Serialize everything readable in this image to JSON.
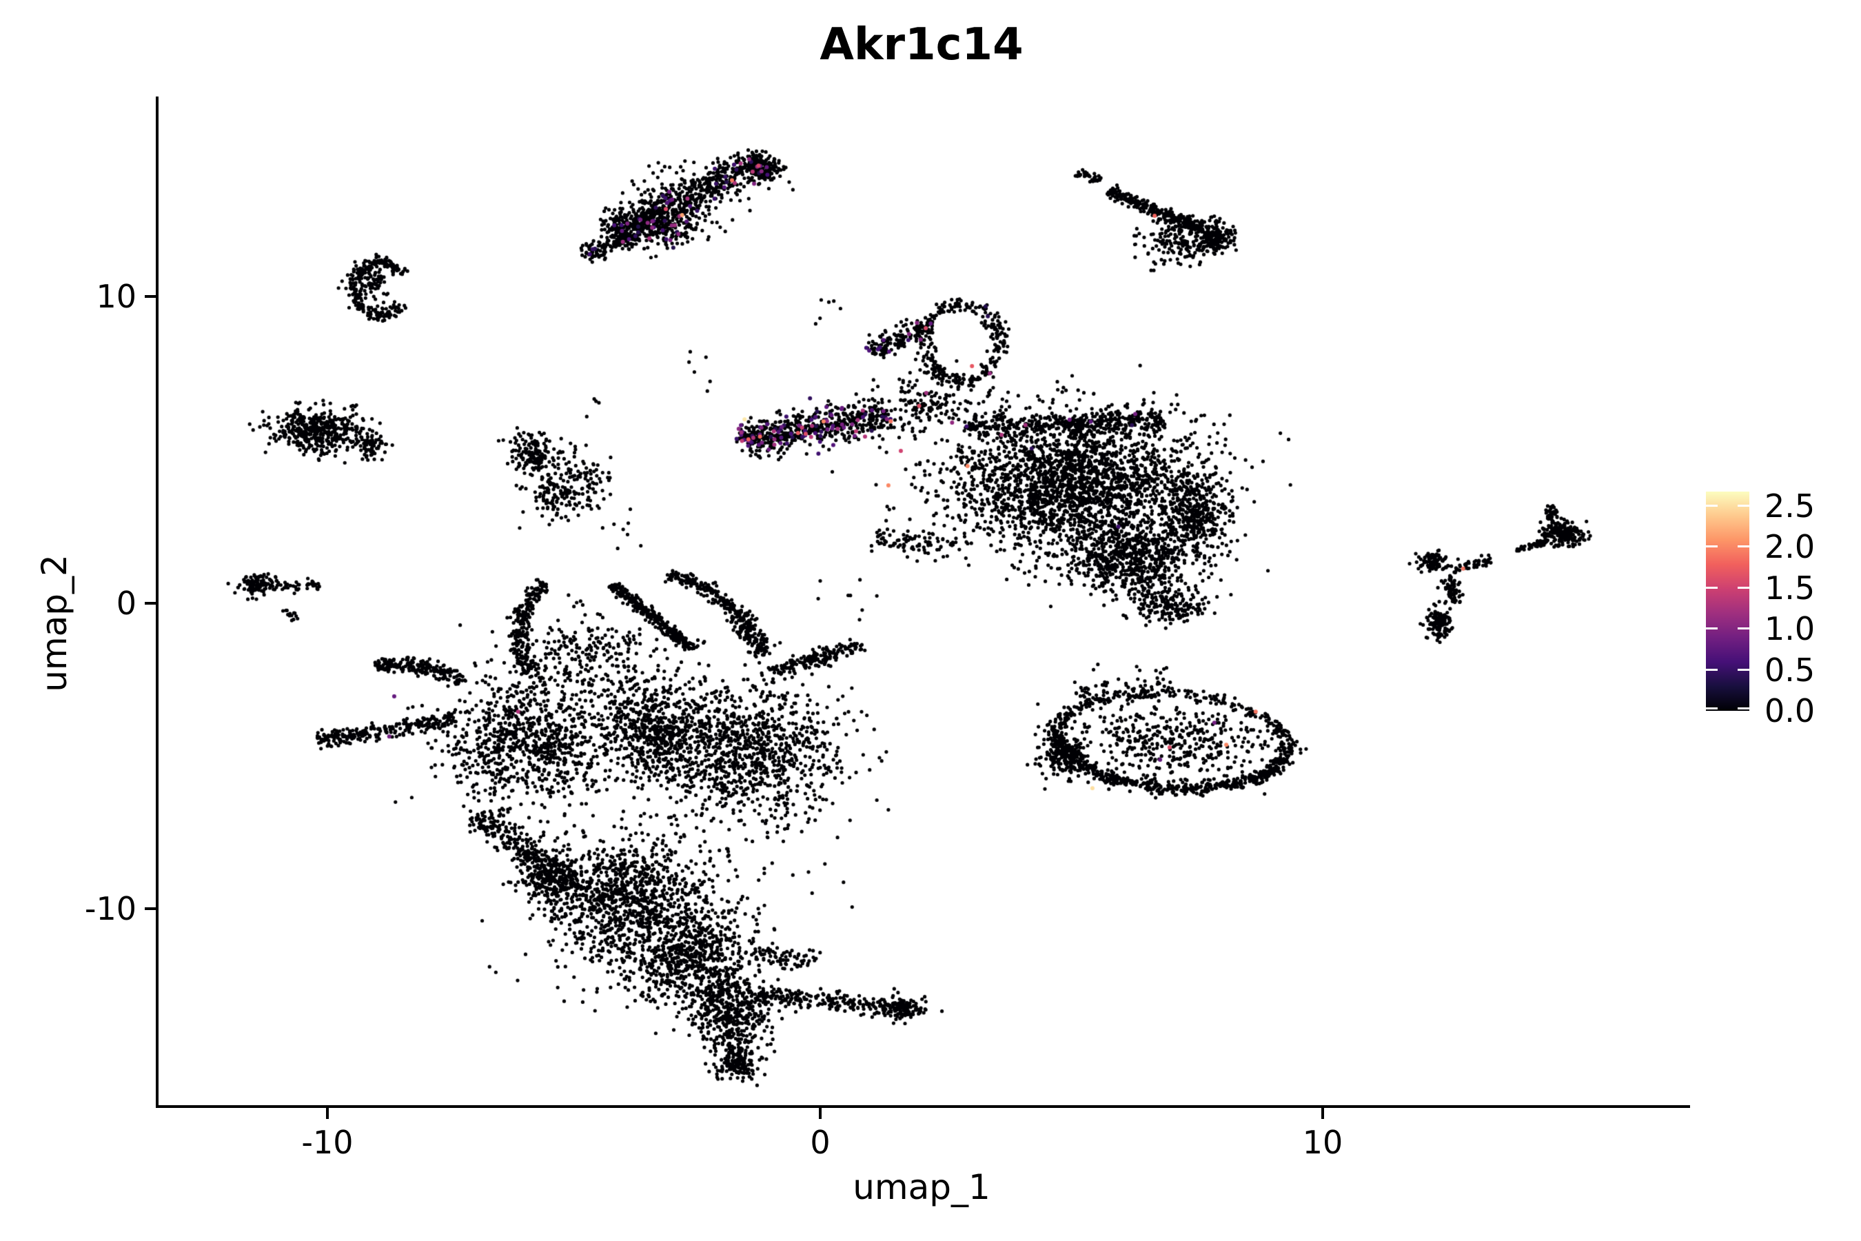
{
  "title": "Akr1c14",
  "axes": {
    "x": {
      "label": "umap_1",
      "ticks": [
        {
          "value": "-10",
          "px": 475
        },
        {
          "value": "0",
          "px": 1190
        },
        {
          "value": "10",
          "px": 1919
        }
      ]
    },
    "y": {
      "label": "umap_2",
      "ticks": [
        {
          "value": "10",
          "px": 430
        },
        {
          "value": "0",
          "px": 875
        },
        {
          "value": "-10",
          "px": 1318
        }
      ]
    }
  },
  "legend": {
    "labels": [
      "2.5",
      "2.0",
      "1.5",
      "1.0",
      "0.5",
      "0.0"
    ],
    "values": [
      2.5,
      2.0,
      1.5,
      1.0,
      0.5,
      0.0
    ]
  },
  "colors": {
    "point_black": "#000004",
    "magma_stops": [
      "#000004",
      "#180f3e",
      "#451077",
      "#721f81",
      "#9f2f7f",
      "#cd4071",
      "#f1605d",
      "#fd9567",
      "#fec98d",
      "#fcfdbf"
    ]
  },
  "chart_data": {
    "type": "scatter",
    "title": "Akr1c14",
    "xlabel": "umap_1",
    "ylabel": "umap_2",
    "xlim": [
      -13.3,
      17.5
    ],
    "ylim": [
      -16.4,
      16.6
    ],
    "grid": false,
    "legend_position": "right",
    "colorbar": {
      "vmin": 0.0,
      "vmax": 2.67,
      "tick_values": [
        0.0,
        0.5,
        1.0,
        1.5,
        2.0,
        2.5
      ],
      "palette": "magma"
    },
    "point_radius_px": 2.6,
    "transform": {
      "x0": 1190,
      "sx": 72.2,
      "y0": 875,
      "sy": 44.4
    },
    "clusters": [
      {
        "type": "streak",
        "x1": -4.22,
        "y1": 12.05,
        "x2": -1.11,
        "y2": 14.46,
        "s": 0.25,
        "n": 650,
        "cf": 0.07
      },
      {
        "type": "blob",
        "x": -1.11,
        "y": 14.19,
        "rx": 0.39,
        "ry": 0.45,
        "n": 120,
        "cf": 0.05
      },
      {
        "type": "streak",
        "x1": -4.78,
        "y1": 11.33,
        "x2": -3.81,
        "y2": 11.94,
        "s": 0.15,
        "n": 120,
        "cf": 0.04
      },
      {
        "type": "blob",
        "x": -3.25,
        "y": 12.27,
        "rx": 0.76,
        "ry": 0.63,
        "n": 220,
        "cf": 0.08
      },
      {
        "type": "blob",
        "x": -2.91,
        "y": 12.95,
        "rx": 1.25,
        "ry": 1.24,
        "n": 130,
        "cf": 0.06
      },
      {
        "type": "streak",
        "x1": 5.15,
        "y1": 14.08,
        "x2": 5.61,
        "y2": 13.81,
        "s": 0.08,
        "n": 40
      },
      {
        "type": "streak",
        "x1": 5.82,
        "y1": 13.49,
        "x2": 7.69,
        "y2": 12.16,
        "s": 0.1,
        "n": 260
      },
      {
        "type": "blob",
        "x": 7.92,
        "y": 11.94,
        "rx": 0.42,
        "ry": 0.5,
        "n": 200
      },
      {
        "type": "blob",
        "x": 7.13,
        "y": 11.82,
        "rx": 0.76,
        "ry": 0.79,
        "n": 130
      },
      {
        "type": "ring",
        "x": -8.84,
        "y": 10.29,
        "rx": 0.53,
        "ry": 0.86,
        "a1": 35,
        "a2": 325,
        "s": 0.12,
        "n": 240
      },
      {
        "type": "blob",
        "x": -9.03,
        "y": 10.59,
        "rx": 0.3,
        "ry": 0.5,
        "n": 70
      },
      {
        "type": "blob",
        "x": -10.04,
        "y": 5.63,
        "rx": 0.94,
        "ry": 0.72,
        "rot": -8,
        "n": 430
      },
      {
        "type": "blob",
        "x": -9.07,
        "y": 5.18,
        "rx": 0.35,
        "ry": 0.4,
        "n": 70
      },
      {
        "type": "blob",
        "x": -5.75,
        "y": 4.84,
        "rx": 0.62,
        "ry": 0.72,
        "n": 150
      },
      {
        "type": "blob",
        "x": -5.33,
        "y": 3.6,
        "rx": 0.55,
        "ry": 0.79,
        "n": 120
      },
      {
        "type": "blob",
        "x": -4.64,
        "y": 3.94,
        "rx": 0.42,
        "ry": 1.01,
        "n": 70
      },
      {
        "type": "blob",
        "x": -11.29,
        "y": 0.61,
        "rx": 0.39,
        "ry": 0.36,
        "n": 110
      },
      {
        "type": "streak",
        "x1": -10.84,
        "y1": 0.52,
        "x2": -10.04,
        "y2": 0.61,
        "s": 0.08,
        "n": 40
      },
      {
        "type": "streak",
        "x1": -10.71,
        "y1": -0.2,
        "x2": -10.54,
        "y2": -0.54,
        "s": 0.05,
        "n": 14
      },
      {
        "type": "streak",
        "x1": -1.55,
        "y1": 5.29,
        "x2": 1.39,
        "y2": 6.19,
        "s": 0.28,
        "n": 560,
        "cf": 0.13
      },
      {
        "type": "blob",
        "x": -1.45,
        "y": 5.38,
        "rx": 0.25,
        "ry": 0.3,
        "n": 60,
        "cf": 0.22
      },
      {
        "type": "ring",
        "x": 2.84,
        "y": 8.51,
        "rx": 0.76,
        "ry": 1.24,
        "a1": 0,
        "a2": 360,
        "s": 0.12,
        "n": 300,
        "cf": 0.02
      },
      {
        "type": "streak",
        "x1": 1.01,
        "y1": 8.18,
        "x2": 2.11,
        "y2": 9.12,
        "s": 0.15,
        "n": 140,
        "cf": 0.05
      },
      {
        "type": "blob",
        "x": 2.15,
        "y": 6.53,
        "rx": 0.83,
        "ry": 1.01,
        "n": 150,
        "cf": 0.02
      },
      {
        "type": "blob",
        "x": 5.12,
        "y": 3.94,
        "rx": 2.63,
        "ry": 2.36,
        "rot": -5,
        "n": 2400,
        "cf": 0.002
      },
      {
        "type": "blob",
        "x": 6.23,
        "y": 1.46,
        "rx": 1.32,
        "ry": 1.13,
        "rot": -10,
        "n": 600
      },
      {
        "type": "blob",
        "x": 7.55,
        "y": 2.82,
        "rx": 0.62,
        "ry": 1.46,
        "n": 320
      },
      {
        "type": "blob",
        "x": 6.99,
        "y": -0.05,
        "rx": 0.76,
        "ry": 0.59,
        "n": 170
      },
      {
        "type": "streak",
        "x1": 2.91,
        "y1": 5.74,
        "x2": 6.93,
        "y2": 5.97,
        "s": 0.18,
        "n": 350,
        "cf": 0.01
      },
      {
        "type": "streak",
        "x1": 1.08,
        "y1": 2.18,
        "x2": 2.7,
        "y2": 1.85,
        "s": 0.2,
        "n": 90
      },
      {
        "type": "blob",
        "x": 12.33,
        "y": 1.35,
        "rx": 0.33,
        "ry": 0.32,
        "n": 90
      },
      {
        "type": "streak",
        "x1": 12.67,
        "y1": 1.13,
        "x2": 13.5,
        "y2": 1.42,
        "s": 0.08,
        "n": 50
      },
      {
        "type": "streak",
        "x1": 12.6,
        "y1": 0.9,
        "x2": 12.81,
        "y2": 0.0,
        "s": 0.08,
        "n": 60
      },
      {
        "type": "blob",
        "x": 12.42,
        "y": -0.68,
        "rx": 0.28,
        "ry": 0.54,
        "n": 130
      },
      {
        "type": "streak",
        "x1": 13.99,
        "y1": 1.73,
        "x2": 14.57,
        "y2": 2.0,
        "s": 0.05,
        "n": 35
      },
      {
        "type": "blob",
        "x": 14.89,
        "y": 2.25,
        "rx": 0.44,
        "ry": 0.41,
        "rot": -25,
        "n": 200
      },
      {
        "type": "blob",
        "x": 14.71,
        "y": 2.88,
        "rx": 0.14,
        "ry": 0.32,
        "n": 40
      },
      {
        "type": "ring",
        "x": 7.06,
        "y": -4.5,
        "rx": 2.35,
        "ry": 1.55,
        "rot": -10,
        "a1": 0,
        "a2": 360,
        "s": 0.12,
        "n": 550
      },
      {
        "type": "blob",
        "x": 7.06,
        "y": -4.5,
        "rx": 1.85,
        "ry": 1.25,
        "rot": -10,
        "n": 400
      },
      {
        "type": "ring",
        "x": 7.06,
        "y": -4.55,
        "rx": 2.25,
        "ry": 1.45,
        "rot": -10,
        "a1": 185,
        "a2": 355,
        "s": 0.1,
        "n": 300
      },
      {
        "type": "blob",
        "x": 4.85,
        "y": -5.0,
        "rx": 0.5,
        "ry": 0.7,
        "n": 150
      },
      {
        "type": "streak",
        "x1": 5.12,
        "y1": -2.82,
        "x2": 7.06,
        "y2": -2.59,
        "s": 0.3,
        "n": 60
      },
      {
        "type": "streak",
        "x1": -5.54,
        "y1": 0.72,
        "x2": -5.84,
        "y2": -2.25,
        "qx": -6.4,
        "qy": -0.68,
        "s": 0.1,
        "n": 220
      },
      {
        "type": "streak",
        "x1": -4.16,
        "y1": 0.61,
        "x2": -2.56,
        "y2": -1.51,
        "s": 0.08,
        "n": 280
      },
      {
        "type": "streak",
        "x1": -3.07,
        "y1": 0.95,
        "x2": -1.63,
        "y2": -0.41,
        "qx": -2.22,
        "qy": 0.68,
        "s": 0.1,
        "n": 170
      },
      {
        "type": "streak",
        "x1": -1.63,
        "y1": -0.41,
        "x2": -1.11,
        "y2": -1.69,
        "s": 0.15,
        "n": 140
      },
      {
        "type": "streak",
        "x1": -8.93,
        "y1": -2.07,
        "x2": -7.23,
        "y2": -2.59,
        "qx": -8.03,
        "qy": -1.8,
        "s": 0.12,
        "n": 200
      },
      {
        "type": "streak",
        "x1": -10.14,
        "y1": -4.5,
        "x2": -7.34,
        "y2": -3.78,
        "s": 0.13,
        "n": 260
      },
      {
        "type": "blob",
        "x": -5.89,
        "y": -4.5,
        "rx": 1.59,
        "ry": 2.14,
        "n": 850
      },
      {
        "type": "blob",
        "x": -3.32,
        "y": -4.17,
        "rx": 1.25,
        "ry": 1.8,
        "n": 650
      },
      {
        "type": "blob",
        "x": -1.39,
        "y": -4.84,
        "rx": 1.8,
        "ry": 2.25,
        "n": 1000
      },
      {
        "type": "streak",
        "x1": -0.97,
        "y1": -2.25,
        "x2": 0.86,
        "y2": -1.35,
        "s": 0.13,
        "n": 170
      },
      {
        "type": "blob",
        "x": -4.71,
        "y": -1.69,
        "rx": 1.66,
        "ry": 1.35,
        "n": 240
      },
      {
        "type": "streak",
        "x1": -6.93,
        "y1": -6.94,
        "x2": -5.47,
        "y2": -8.56,
        "s": 0.18,
        "n": 200
      },
      {
        "type": "blob",
        "x": -5.4,
        "y": -8.94,
        "rx": 0.62,
        "ry": 0.79,
        "n": 280
      },
      {
        "type": "blob",
        "x": -3.95,
        "y": -9.57,
        "rx": 1.52,
        "ry": 1.8,
        "n": 850
      },
      {
        "type": "blob",
        "x": -2.63,
        "y": -11.6,
        "rx": 1.25,
        "ry": 1.58,
        "n": 650
      },
      {
        "type": "blob",
        "x": -1.8,
        "y": -13.4,
        "rx": 0.83,
        "ry": 1.24,
        "n": 420
      },
      {
        "type": "blob",
        "x": -1.63,
        "y": -14.98,
        "rx": 0.42,
        "ry": 0.63,
        "n": 150
      },
      {
        "type": "streak",
        "x1": -1.25,
        "y1": -12.77,
        "x2": 1.8,
        "y2": -13.29,
        "s": 0.15,
        "n": 240
      },
      {
        "type": "blob",
        "x": 1.66,
        "y": -13.22,
        "rx": 0.4,
        "ry": 0.4,
        "n": 110
      },
      {
        "type": "streak",
        "x1": -1.39,
        "y1": -11.42,
        "x2": -0.07,
        "y2": -11.78,
        "s": 0.2,
        "n": 70
      },
      {
        "type": "blob",
        "x": -3.32,
        "y": -10.25,
        "rx": 2.49,
        "ry": 2.93,
        "n": 260
      },
      {
        "type": "blob",
        "x": -3.95,
        "y": 2.36,
        "rx": 0.55,
        "ry": 1.1,
        "n": 8
      },
      {
        "type": "blob",
        "x": -2.49,
        "y": 7.55,
        "rx": 0.55,
        "ry": 0.68,
        "n": 6
      },
      {
        "type": "blob",
        "x": 0.62,
        "y": -0.11,
        "rx": 0.83,
        "ry": 0.9,
        "n": 8
      },
      {
        "type": "blob",
        "x": -4.53,
        "y": 6.58,
        "rx": 0.4,
        "ry": 0.5,
        "n": 4
      },
      {
        "type": "blob",
        "x": 0.28,
        "y": 9.57,
        "rx": 0.55,
        "ry": 0.55,
        "n": 6
      },
      {
        "type": "blob",
        "x": -5.82,
        "y": -7.61,
        "rx": 0.3,
        "ry": 0.3,
        "n": 3
      }
    ],
    "colored_points": [
      [
        6.72,
        12.66,
        1.8
      ],
      [
        12.92,
        1.13,
        1.9
      ],
      [
        -1.52,
        6.01,
        2.55
      ],
      [
        2.96,
        4.48,
        2.0
      ],
      [
        1.37,
        3.85,
        2.0
      ],
      [
        2.65,
        5.9,
        1.1
      ],
      [
        2.13,
        6.87,
        1.2
      ],
      [
        1.27,
        6.28,
        0.9
      ],
      [
        2.22,
        9.14,
        0.8
      ],
      [
        1.27,
        8.6,
        0.7
      ],
      [
        3.05,
        7.75,
        1.7
      ],
      [
        1.62,
        4.98,
        1.5
      ],
      [
        8.75,
        -3.54,
        1.9
      ],
      [
        8.16,
        -4.62,
        2.0
      ],
      [
        7.92,
        -3.9,
        0.9
      ],
      [
        6.83,
        -5.11,
        0.8
      ],
      [
        5.47,
        -6.04,
        2.5
      ],
      [
        7.02,
        -4.71,
        1.6
      ],
      [
        -8.56,
        -3.04,
        0.8
      ],
      [
        -6.07,
        -3.54,
        1.3
      ],
      [
        -8.66,
        -4.35,
        0.9
      ]
    ]
  }
}
